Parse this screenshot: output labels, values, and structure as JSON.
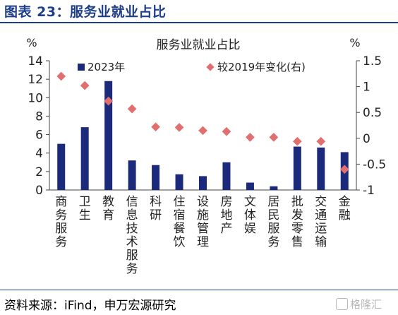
{
  "figure": {
    "title": "图表 23：服务业就业占比",
    "source": "资料来源：iFind，申万宏源研究",
    "watermark": "格隆汇"
  },
  "chart_data": {
    "type": "bar",
    "title": "服务业就业占比",
    "categories": [
      "商务服务",
      "卫生",
      "教育",
      "信息技术服务",
      "科研",
      "住宿餐饮",
      "设施管理",
      "房地产",
      "文体娱",
      "居民服务",
      "批发零售",
      "交通运输",
      "金融"
    ],
    "series": [
      {
        "name": "2023年",
        "type": "bar",
        "axis": "left",
        "color": "#1b2a7a",
        "values": [
          5.0,
          6.8,
          11.8,
          3.2,
          2.7,
          1.7,
          1.5,
          3.0,
          0.8,
          0.4,
          4.7,
          4.6,
          4.1
        ]
      },
      {
        "name": "较2019年变化(右)",
        "type": "scatter",
        "axis": "right",
        "color": "#e07070",
        "values": [
          1.2,
          1.02,
          0.72,
          0.57,
          0.22,
          0.21,
          0.15,
          0.13,
          0.02,
          0.02,
          -0.06,
          -0.06,
          -0.6
        ]
      }
    ],
    "y_left": {
      "label": "%",
      "min": 0,
      "max": 14,
      "ticks": [
        0,
        2,
        4,
        6,
        8,
        10,
        12,
        14
      ]
    },
    "y_right": {
      "label": "%",
      "min": -1,
      "max": 1.5,
      "ticks": [
        -1,
        -0.5,
        0,
        0.5,
        1,
        1.5
      ],
      "tick_labels": [
        "-1",
        "-0.5",
        "0",
        "0.5",
        "1",
        "1.5"
      ]
    },
    "legend_position": "top",
    "grid": false
  }
}
